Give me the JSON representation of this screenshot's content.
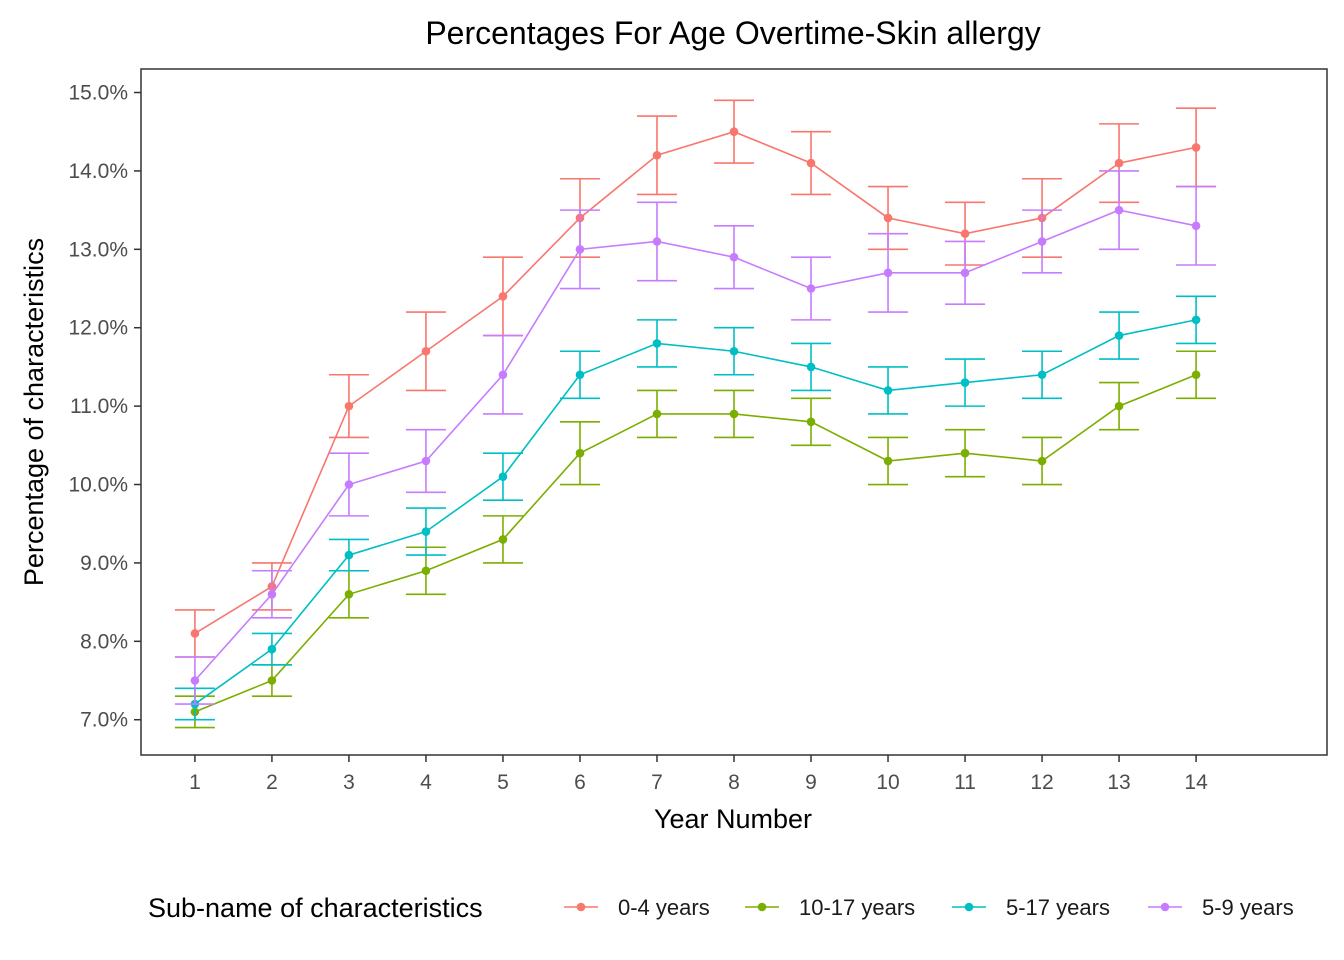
{
  "chart_data": {
    "type": "line",
    "title": "Percentages For Age Overtime-Skin allergy",
    "xlabel": "Year Number",
    "ylabel": "Percentage of characteristics",
    "x": [
      1,
      2,
      3,
      4,
      5,
      6,
      7,
      8,
      9,
      10,
      11,
      12,
      13,
      14
    ],
    "x_tick_labels": [
      "1",
      "2",
      "3",
      "4",
      "5",
      "6",
      "7",
      "8",
      "9",
      "10",
      "11",
      "12",
      "13",
      "14"
    ],
    "xlim": [
      0.3,
      15.7
    ],
    "ylim": [
      6.55,
      15.3
    ],
    "y_ticks": [
      7,
      8,
      9,
      10,
      11,
      12,
      13,
      14,
      15
    ],
    "y_tick_labels": [
      "7.0%",
      "8.0%",
      "9.0%",
      "10.0%",
      "11.0%",
      "12.0%",
      "13.0%",
      "14.0%",
      "15.0%"
    ],
    "grid": false,
    "legend_title": "Sub-name of characteristics",
    "legend_position": "bottom",
    "series": [
      {
        "name": "0-4 years",
        "color": "#F8766D",
        "values": [
          8.1,
          8.7,
          11.0,
          11.7,
          12.4,
          13.4,
          14.2,
          14.5,
          14.1,
          13.4,
          13.2,
          13.4,
          14.1,
          14.3
        ],
        "lower": [
          7.8,
          8.4,
          10.6,
          11.2,
          11.9,
          12.9,
          13.7,
          14.1,
          13.7,
          13.0,
          12.8,
          12.9,
          13.6,
          13.8
        ],
        "upper": [
          8.4,
          9.0,
          11.4,
          12.2,
          12.9,
          13.9,
          14.7,
          14.9,
          14.5,
          13.8,
          13.6,
          13.9,
          14.6,
          14.8
        ]
      },
      {
        "name": "10-17 years",
        "color": "#7CAE00",
        "values": [
          7.1,
          7.5,
          8.6,
          8.9,
          9.3,
          10.4,
          10.9,
          10.9,
          10.8,
          10.3,
          10.4,
          10.3,
          11.0,
          11.4
        ],
        "lower": [
          6.9,
          7.3,
          8.3,
          8.6,
          9.0,
          10.0,
          10.6,
          10.6,
          10.5,
          10.0,
          10.1,
          10.0,
          10.7,
          11.1
        ],
        "upper": [
          7.3,
          7.7,
          8.9,
          9.2,
          9.6,
          10.8,
          11.2,
          11.2,
          11.1,
          10.6,
          10.7,
          10.6,
          11.3,
          11.7
        ]
      },
      {
        "name": "5-17 years",
        "color": "#00BFC4",
        "values": [
          7.2,
          7.9,
          9.1,
          9.4,
          10.1,
          11.4,
          11.8,
          11.7,
          11.5,
          11.2,
          11.3,
          11.4,
          11.9,
          12.1
        ],
        "lower": [
          7.0,
          7.7,
          8.9,
          9.1,
          9.8,
          11.1,
          11.5,
          11.4,
          11.2,
          10.9,
          11.0,
          11.1,
          11.6,
          11.8
        ],
        "upper": [
          7.4,
          8.1,
          9.3,
          9.7,
          10.4,
          11.7,
          12.1,
          12.0,
          11.8,
          11.5,
          11.6,
          11.7,
          12.2,
          12.4
        ]
      },
      {
        "name": "5-9 years",
        "color": "#C77CFF",
        "values": [
          7.5,
          8.6,
          10.0,
          10.3,
          11.4,
          13.0,
          13.1,
          12.9,
          12.5,
          12.7,
          12.7,
          13.1,
          13.5,
          13.3
        ],
        "lower": [
          7.2,
          8.3,
          9.6,
          9.9,
          10.9,
          12.5,
          12.6,
          12.5,
          12.1,
          12.2,
          12.3,
          12.7,
          13.0,
          12.8
        ],
        "upper": [
          7.8,
          8.9,
          10.4,
          10.7,
          11.9,
          13.5,
          13.6,
          13.3,
          12.9,
          13.2,
          13.1,
          13.5,
          14.0,
          13.8
        ]
      }
    ]
  }
}
